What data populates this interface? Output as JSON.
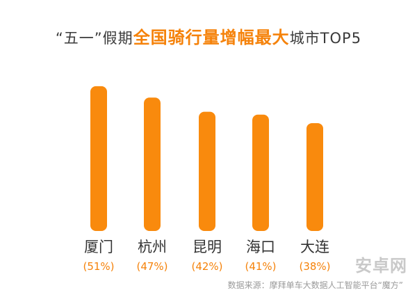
{
  "title": {
    "prefix": "“五一”假期",
    "highlight": "全国骑行量增幅最大",
    "suffix": "城市TOP5"
  },
  "chart_data": {
    "type": "bar",
    "categories": [
      "厦门",
      "杭州",
      "昆明",
      "海口",
      "大连"
    ],
    "values": [
      51,
      47,
      42,
      41,
      38
    ],
    "value_labels": [
      "(51%)",
      "(47%)",
      "(42%)",
      "(41%)",
      "(38%)"
    ],
    "unit": "%",
    "grid": false,
    "legend": "none"
  },
  "source": "数据来源：摩拜单车大数据人工智能平台“魔方”",
  "watermark": "安卓网",
  "colors": {
    "bar": "#f98a0d",
    "category_text": "#333333",
    "value_text": "#f5820a",
    "accent": "#f5820a"
  }
}
